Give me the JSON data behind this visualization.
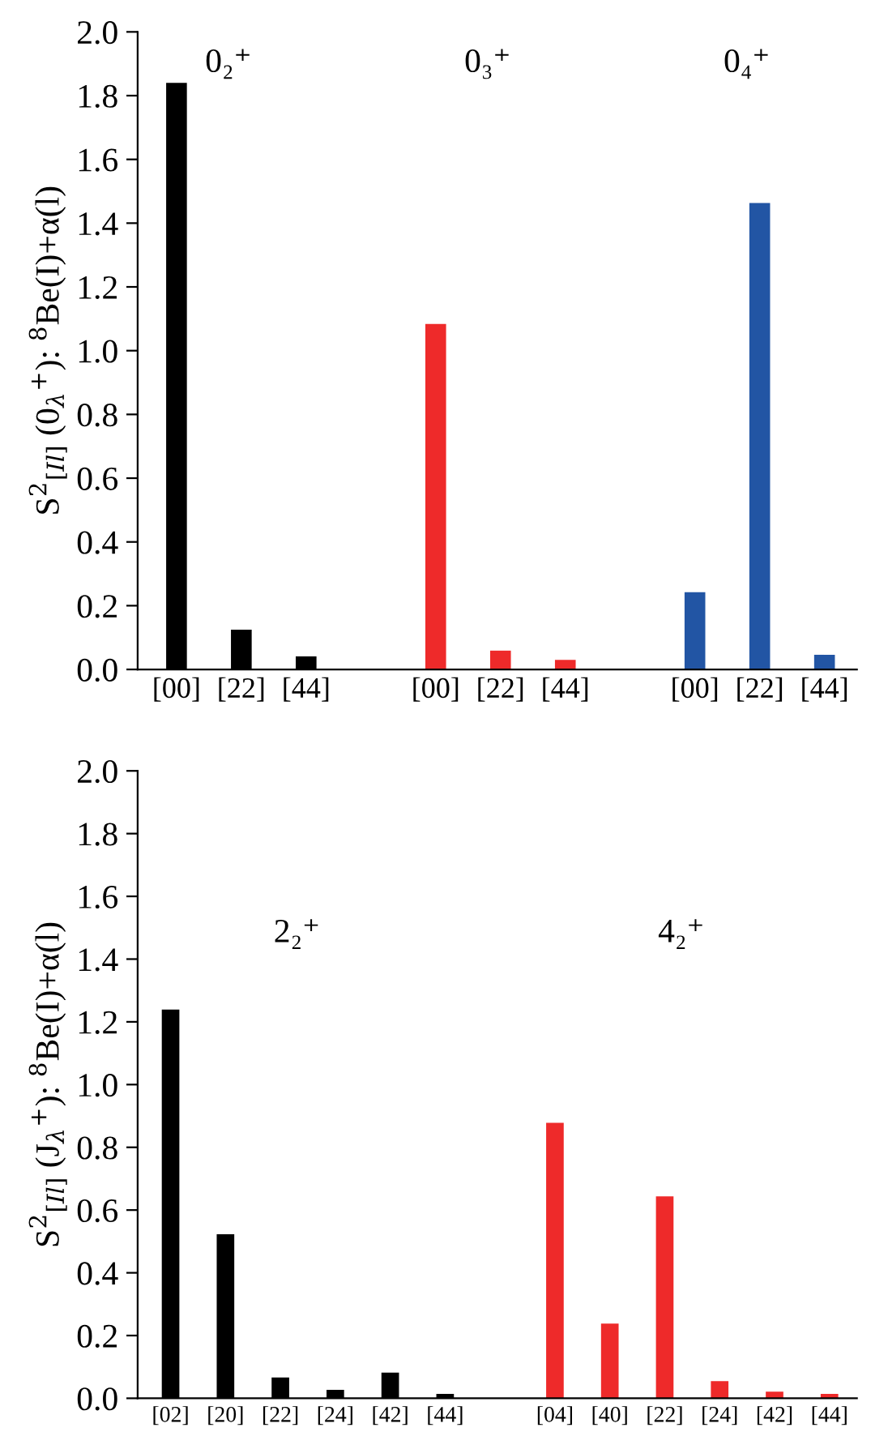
{
  "chart_data": [
    {
      "type": "bar",
      "ylabel": "S$^{2}$$_{[Il]}$ (0$_{λ}$$^{+}$): $^{8}$Be(I)+α(l)",
      "categories": [
        "[00]",
        "[22]",
        "[44]",
        null,
        "[00]",
        "[22]",
        "[44]",
        null,
        "[00]",
        "[22]",
        "[44]"
      ],
      "series": [
        {
          "color": "#000000",
          "values": [
            1.84,
            0.125,
            0.041,
            null,
            null,
            null,
            null,
            null,
            null,
            null,
            null
          ]
        },
        {
          "color": "#ee2a2a",
          "values": [
            null,
            null,
            null,
            null,
            1.084,
            0.059,
            0.03,
            null,
            null,
            null,
            null
          ]
        },
        {
          "color": "#2255a4",
          "values": [
            null,
            null,
            null,
            null,
            null,
            null,
            null,
            null,
            0.242,
            1.463,
            0.046
          ]
        }
      ],
      "annotations": [
        "0₂⁺",
        "0₃⁺",
        "0₄⁺"
      ],
      "ylim": [
        0,
        2.0
      ],
      "yticks": [
        {
          "value": 0,
          "label": "0.0"
        },
        0.2,
        0.4,
        0.6,
        0.8,
        {
          "value": 1,
          "label": "1.0"
        },
        1.2,
        1.4,
        1.6,
        1.8,
        {
          "value": 2,
          "label": "2.0"
        }
      ]
    },
    {
      "type": "bar",
      "ylabel": "S$^{2}$$_{[Il]}$ (J$_{λ}$$^{+}$): $^{8}$Be(I)+α(l)",
      "categories": [
        "[02]",
        "[20]",
        "[22]",
        "[24]",
        "[42]",
        "[44]",
        null,
        "[04]",
        "[40]",
        "[22]",
        "[24]",
        "[42]",
        "[44]"
      ],
      "series": [
        {
          "color": "#000000",
          "values": [
            1.239,
            0.523,
            0.066,
            0.027,
            0.082,
            0.014,
            null,
            null,
            null,
            null,
            null,
            null,
            null
          ]
        },
        {
          "color": "#ee2a2a",
          "values": [
            null,
            null,
            null,
            null,
            null,
            null,
            null,
            0.878,
            0.238,
            0.644,
            0.055,
            0.021,
            0.014
          ]
        }
      ],
      "annotations": [
        "2₂⁺",
        "4₂⁺"
      ],
      "ylim": [
        0,
        2.0
      ],
      "yticks": [
        {
          "value": 0,
          "label": "0.0"
        },
        0.2,
        0.4,
        0.6,
        0.8,
        {
          "value": 1,
          "label": "1.0"
        },
        1.2,
        1.4,
        1.6,
        1.8,
        {
          "value": 2,
          "label": "2.0"
        }
      ]
    }
  ]
}
